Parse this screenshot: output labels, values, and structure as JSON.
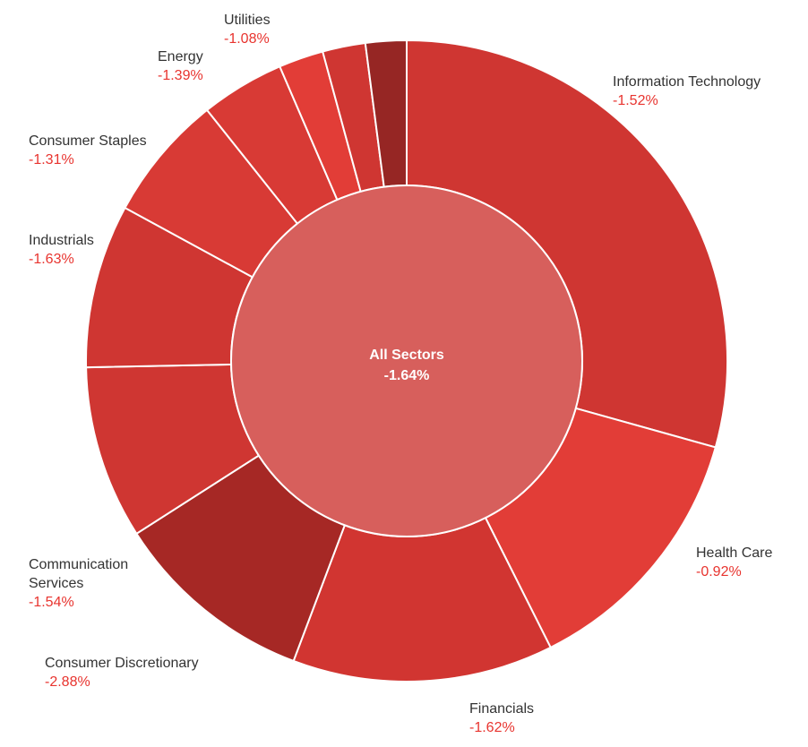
{
  "chart_data": {
    "type": "pie",
    "style": "donut-sunburst",
    "center": {
      "label": "All Sectors",
      "value": "-1.64%",
      "color": "#d75f5c"
    },
    "slices": [
      {
        "name": "Information Technology",
        "change": "-1.52%",
        "weight": 29.9,
        "color": "#cf3632"
      },
      {
        "name": "Health Care",
        "change": "-0.92%",
        "weight": 13.5,
        "color": "#e23d37"
      },
      {
        "name": "Financials",
        "change": "-1.62%",
        "weight": 13.4,
        "color": "#d13531"
      },
      {
        "name": "Consumer Discretionary",
        "change": "-2.88%",
        "weight": 10.4,
        "color": "#a62825"
      },
      {
        "name": "Communication Services",
        "change": "-1.54%",
        "weight": 8.9,
        "color": "#cf3632"
      },
      {
        "name": "Industrials",
        "change": "-1.63%",
        "weight": 8.4,
        "color": "#cf3632"
      },
      {
        "name": "Consumer Staples",
        "change": "-1.31%",
        "weight": 6.5,
        "color": "#d83a35"
      },
      {
        "name": "Energy",
        "change": "-1.39%",
        "weight": 4.3,
        "color": "#d83a35"
      },
      {
        "name": "Utilities",
        "change": "-1.08%",
        "weight": 2.3,
        "color": "#e23d37"
      },
      {
        "name": "",
        "change": "",
        "weight": 2.2,
        "color": "#cf3632"
      },
      {
        "name": "",
        "change": "",
        "weight": 2.1,
        "color": "#962624"
      }
    ],
    "labels": [
      {
        "lines": [
          "Information Technology"
        ],
        "value": "-1.52%"
      },
      {
        "lines": [
          "Health Care"
        ],
        "value": "-0.92%"
      },
      {
        "lines": [
          "Financials"
        ],
        "value": "-1.62%"
      },
      {
        "lines": [
          "Consumer Discretionary"
        ],
        "value": "-2.88%"
      },
      {
        "lines": [
          "Communication",
          "Services"
        ],
        "value": "-1.54%"
      },
      {
        "lines": [
          "Industrials"
        ],
        "value": "-1.63%"
      },
      {
        "lines": [
          "Consumer Staples"
        ],
        "value": "-1.31%"
      },
      {
        "lines": [
          "Energy"
        ],
        "value": "-1.39%"
      },
      {
        "lines": [
          "Utilities"
        ],
        "value": "-1.08%"
      }
    ]
  }
}
